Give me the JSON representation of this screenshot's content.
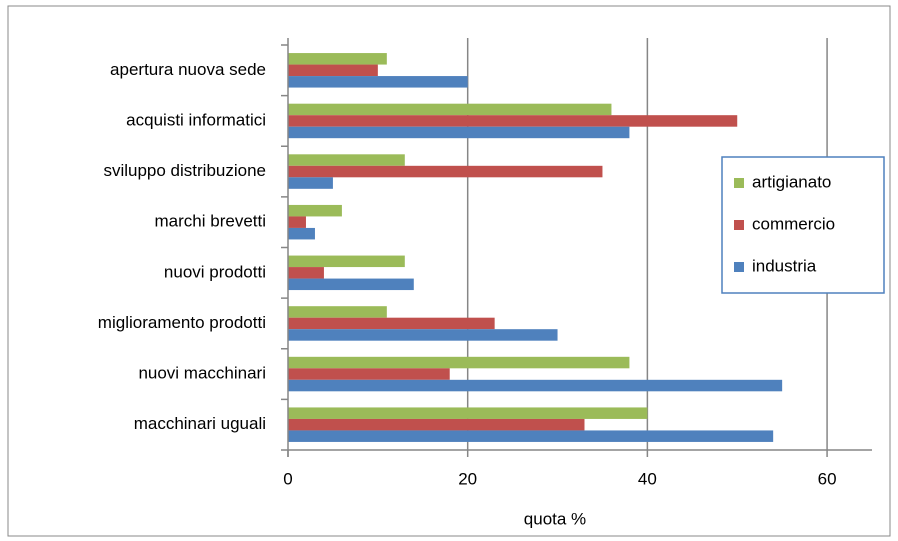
{
  "chart_data": {
    "type": "bar",
    "orientation": "horizontal",
    "xlabel": "quota %",
    "categories": [
      "apertura nuova sede",
      "acquisti informatici",
      "sviluppo distribuzione",
      "marchi brevetti",
      "nuovi prodotti",
      "miglioramento prodotti",
      "nuovi macchinari",
      "macchinari uguali"
    ],
    "series": [
      {
        "name": "artigianato",
        "color": "#9bbb59",
        "values": [
          11,
          36,
          13,
          6,
          13,
          11,
          38,
          40
        ]
      },
      {
        "name": "commercio",
        "color": "#c0504d",
        "values": [
          10,
          50,
          35,
          2,
          4,
          23,
          18,
          33
        ]
      },
      {
        "name": "industria",
        "color": "#4f81bd",
        "values": [
          20,
          38,
          5,
          3,
          14,
          30,
          55,
          54
        ]
      }
    ],
    "xlim": [
      0,
      65
    ],
    "xticks": [
      0,
      20,
      40,
      60
    ],
    "grid": true,
    "legend": "right"
  }
}
